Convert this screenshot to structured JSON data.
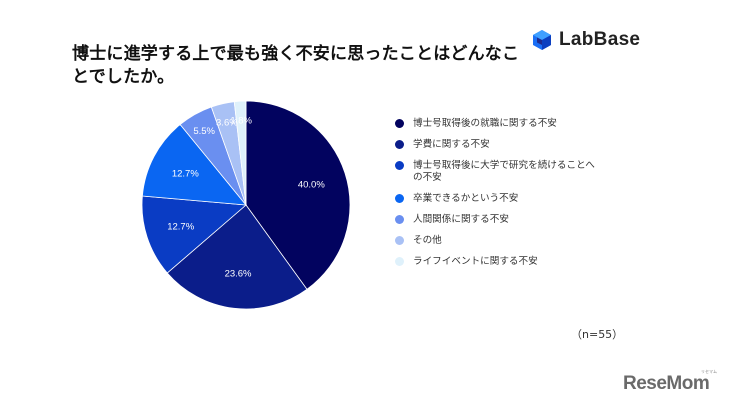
{
  "title": "博士に進学する上で最も強く不安に思ったことはどんなことでしたか。",
  "logo_text": "LabBase",
  "watermark": "ReseMom",
  "watermark_ruby": "リセマム",
  "note": "（n=55）",
  "chart_data": {
    "type": "pie",
    "title": "博士に進学する上で最も強く不安に思ったことはどんなことでしたか。",
    "sample_size": "n=55",
    "legend_position": "right",
    "start_angle": "top, clockwise",
    "slices": [
      {
        "label": "博士号取得後の就職に関する不安",
        "value": 40.0,
        "value_label": "40.0%",
        "color": "#02035f"
      },
      {
        "label": "学費に関する不安",
        "value": 23.6,
        "value_label": "23.6%",
        "color": "#0b1d8a"
      },
      {
        "label": "博士号取得後に大学で研究を続けることへの不安",
        "value": 12.7,
        "value_label": "12.7%",
        "color": "#0a3cc4"
      },
      {
        "label": "卒業できるかという不安",
        "value": 12.7,
        "value_label": "12.7%",
        "color": "#0a66f2"
      },
      {
        "label": "人間関係に関する不安",
        "value": 5.5,
        "value_label": "5.5%",
        "color": "#6a8ff0"
      },
      {
        "label": "その他",
        "value": 3.6,
        "value_label": "3.6%",
        "color": "#a9c1f5"
      },
      {
        "label": "ライフイベントに関する不安",
        "value": 1.8,
        "value_label": "1.8%",
        "color": "#dff1fb"
      }
    ]
  }
}
